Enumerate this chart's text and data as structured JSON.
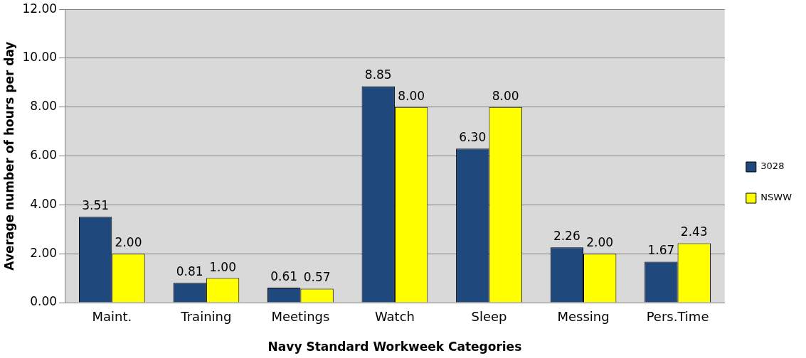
{
  "chart_data": {
    "type": "bar",
    "xlabel": "Navy Standard Workweek Categories",
    "ylabel": "Average number of hours per day",
    "categories": [
      "Maint.",
      "Training",
      "Meetings",
      "Watch",
      "Sleep",
      "Messing",
      "Pers.Time"
    ],
    "series": [
      {
        "name": "3028",
        "color": "#1f497d",
        "values": [
          3.51,
          0.81,
          0.61,
          8.85,
          6.3,
          2.26,
          1.67
        ],
        "value_labels": [
          "3.51",
          "0.81",
          "0.61",
          "8.85",
          "6.30",
          "2.26",
          "1.67"
        ]
      },
      {
        "name": "NSWW",
        "color": "#ffff00",
        "values": [
          2.0,
          1.0,
          0.57,
          8.0,
          8.0,
          2.0,
          2.43
        ],
        "value_labels": [
          "2.00",
          "1.00",
          "0.57",
          "8.00",
          "8.00",
          "2.00",
          "2.43"
        ]
      }
    ],
    "ylim": [
      0,
      12
    ],
    "yticks": [
      {
        "value": 0,
        "label": "0.00"
      },
      {
        "value": 2,
        "label": "2.00"
      },
      {
        "value": 4,
        "label": "4.00"
      },
      {
        "value": 6,
        "label": "6.00"
      },
      {
        "value": 8,
        "label": "8.00"
      },
      {
        "value": 10,
        "label": "10.00"
      },
      {
        "value": 12,
        "label": "12.00"
      }
    ],
    "grid": "y",
    "legend": "right"
  }
}
